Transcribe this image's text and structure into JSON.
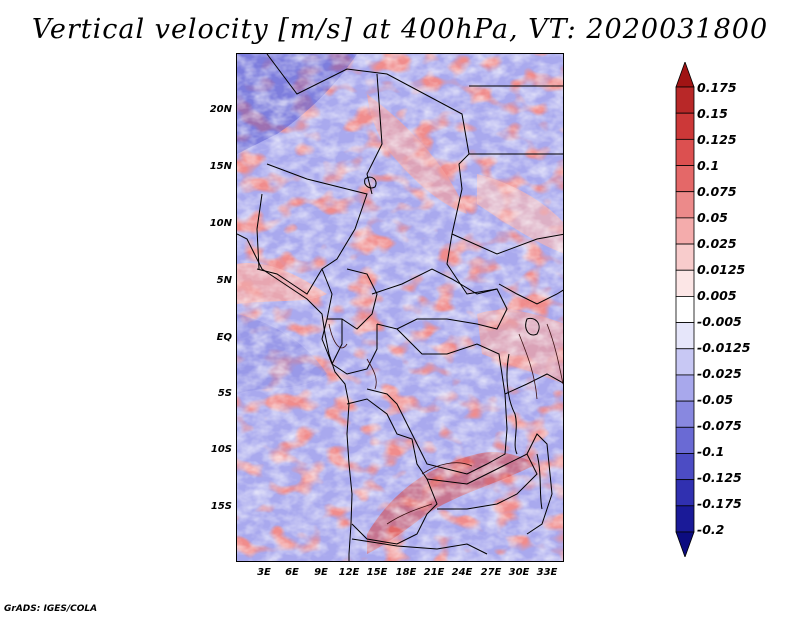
{
  "title": "Vertical velocity [m/s] at 400hPa, VT: 2020031800",
  "credit": "GrADS: IGES/COLA",
  "map": {
    "lat_labels": [
      "20N",
      "15N",
      "10N",
      "5N",
      "EQ",
      "5S",
      "10S",
      "15S"
    ],
    "lon_labels": [
      "3E",
      "6E",
      "9E",
      "12E",
      "15E",
      "18E",
      "21E",
      "24E",
      "27E",
      "30E",
      "33E"
    ]
  },
  "colorbar": {
    "levels": [
      "0.175",
      "0.15",
      "0.125",
      "0.1",
      "0.075",
      "0.05",
      "0.025",
      "0.0125",
      "0.005",
      "-0.005",
      "-0.0125",
      "-0.025",
      "-0.05",
      "-0.075",
      "-0.1",
      "-0.125",
      "-0.175",
      "-0.2"
    ],
    "colors": [
      "#a01414",
      "#b82828",
      "#cc3838",
      "#dc5050",
      "#e46868",
      "#ec8a8a",
      "#f4acac",
      "#f8cccc",
      "#fce6e6",
      "#ffffff",
      "#e6e6fa",
      "#c8c8f4",
      "#a8a8ec",
      "#8888e0",
      "#6a6ad4",
      "#4c4cc4",
      "#3030b0",
      "#1a1a98",
      "#0c0c80"
    ]
  }
}
